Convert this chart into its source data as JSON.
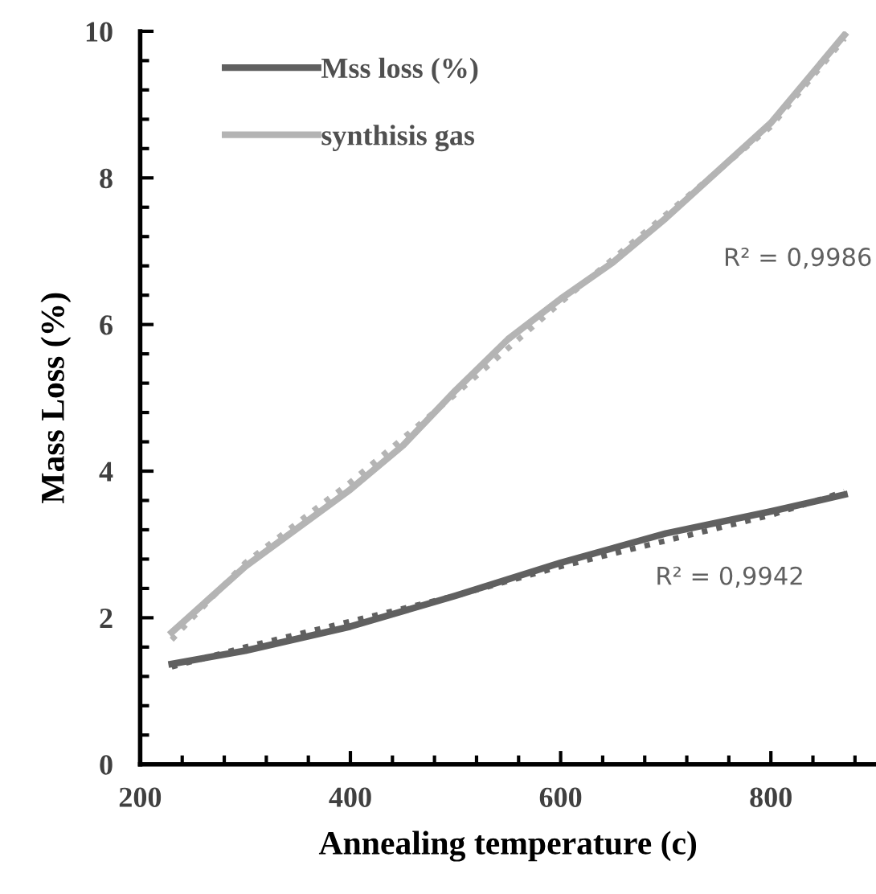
{
  "chart_data": {
    "type": "line",
    "xlabel": "Annealing temperature (c)",
    "ylabel": "Mass Loss (%)",
    "xlim": [
      200,
      900
    ],
    "xticks": [
      200,
      400,
      600,
      800
    ],
    "ylim": [
      0,
      10
    ],
    "yticks": [
      0,
      2,
      4,
      6,
      8,
      10
    ],
    "grid": false,
    "legend": "top left",
    "marker": "none",
    "series": [
      {
        "name": "Mss loss (%)",
        "color": "#606060",
        "line_style": "solid",
        "x": [
          230,
          300,
          400,
          500,
          600,
          700,
          800,
          870
        ],
        "values": [
          1.37,
          1.55,
          1.88,
          2.3,
          2.75,
          3.15,
          3.45,
          3.68
        ]
      },
      {
        "name": "synthisis gas",
        "color": "#b4b4b4",
        "line_style": "solid",
        "x": [
          230,
          300,
          400,
          450,
          500,
          550,
          600,
          650,
          700,
          800,
          870
        ],
        "values": [
          1.8,
          2.7,
          3.75,
          4.35,
          5.1,
          5.8,
          6.35,
          6.85,
          7.45,
          8.75,
          9.95
        ]
      },
      {
        "color": "#606060",
        "line_style": "dotted",
        "x": [
          230,
          300,
          400,
          500,
          600,
          700,
          800,
          870
        ],
        "values": [
          1.33,
          1.6,
          1.95,
          2.3,
          2.7,
          3.05,
          3.4,
          3.72
        ]
      },
      {
        "color": "#b4b4b4",
        "line_style": "dotted",
        "x": [
          230,
          300,
          400,
          500,
          600,
          700,
          800,
          870
        ],
        "values": [
          1.7,
          2.75,
          3.85,
          5.05,
          6.3,
          7.5,
          8.7,
          9.9
        ]
      }
    ],
    "annotations": [
      "R² = 0,9986",
      "R² = 0,9942"
    ]
  }
}
